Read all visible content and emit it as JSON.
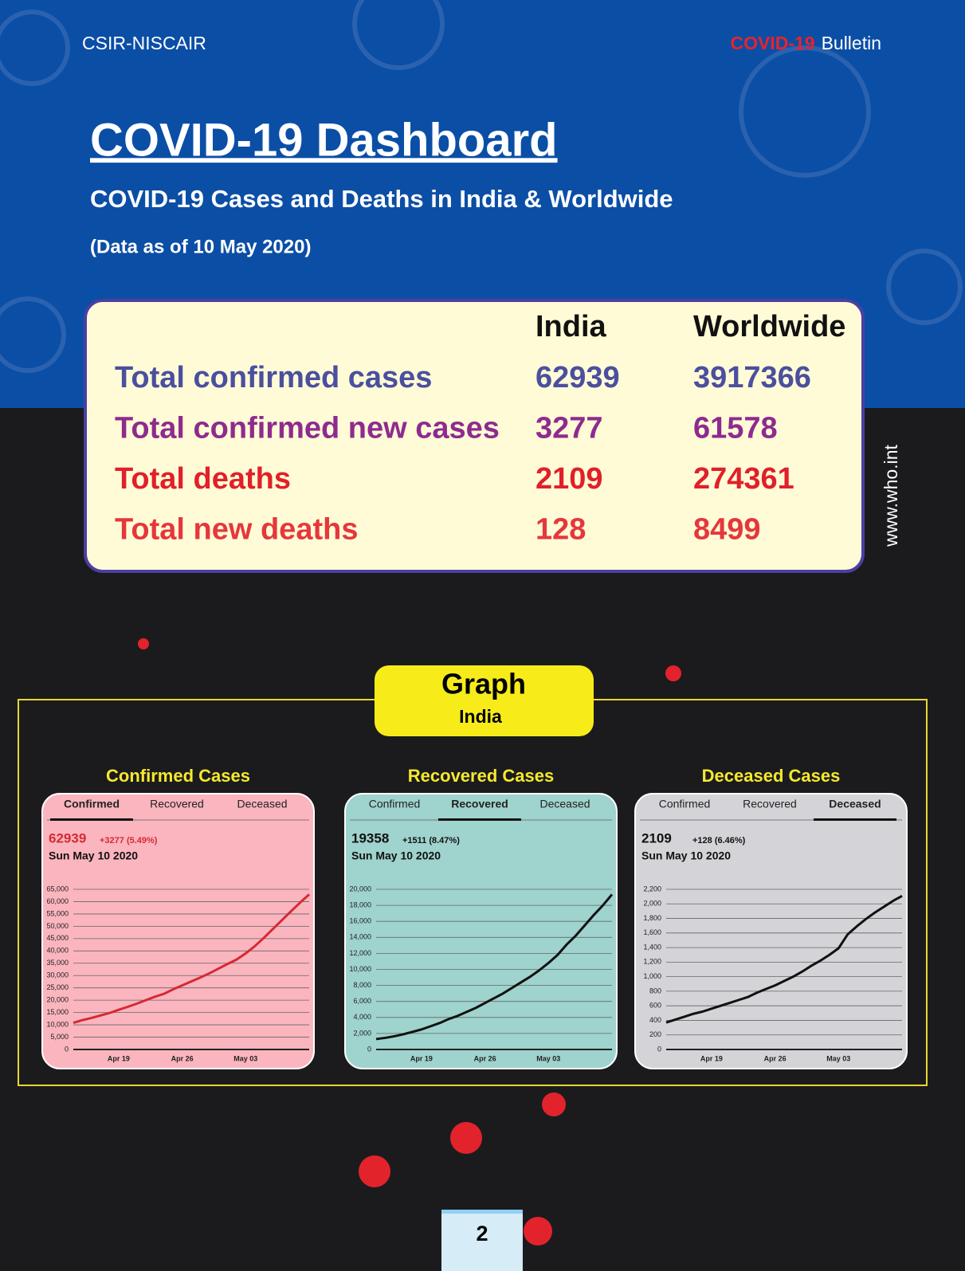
{
  "header": {
    "org": "CSIR-NISCAIR",
    "bulletin_highlight": "COVID-19",
    "bulletin": "Bulletin",
    "title": "COVID-19 Dashboard",
    "subtitle": "COVID-19 Cases and Deaths in India & Worldwide",
    "date_note": "(Data as of 10 May 2020)"
  },
  "table": {
    "columns": [
      "India",
      "Worldwide"
    ],
    "rows": [
      {
        "label": "Total confirmed cases",
        "values": [
          62939,
          3917366
        ],
        "color": "#4a4f9f"
      },
      {
        "label": "Total confirmed new cases",
        "values": [
          3277,
          61578
        ],
        "color": "#8e2b8e"
      },
      {
        "label": "Total deaths",
        "values": [
          2109,
          274361
        ],
        "color": "#e0202a"
      },
      {
        "label": "Total new deaths",
        "values": [
          128,
          8499
        ],
        "color": "#e5373c"
      }
    ]
  },
  "side_text": "www.who.int",
  "graph_label": "Graph",
  "graph_sublabel": "India",
  "chart_data": [
    {
      "type": "line",
      "title": "Confirmed Cases",
      "tabs": [
        "Confirmed",
        "Recovered",
        "Deceased"
      ],
      "active_tab": 0,
      "change": "+3277 (5.49%)",
      "date": "Sun May 10 2020",
      "color": "#d42a34",
      "background": "#fbb5bf",
      "categories": [
        null,
        null,
        null,
        null,
        null,
        "Apr 19",
        null,
        null,
        null,
        null,
        null,
        null,
        "Apr 26",
        null,
        null,
        null,
        null,
        null,
        null,
        "May 03",
        null,
        null,
        null,
        null,
        null,
        null,
        null
      ],
      "values": [
        10800,
        11900,
        12800,
        13800,
        14800,
        16100,
        17300,
        18600,
        20000,
        21400,
        22600,
        24400,
        26000,
        27600,
        29200,
        30900,
        32800,
        34700,
        36500,
        39000,
        41900,
        45300,
        48900,
        52500,
        56100,
        59600,
        62939
      ],
      "ylim": [
        0,
        65000
      ],
      "yticks": [
        0,
        {
          "value": 5000,
          "label": "5,000"
        },
        {
          "value": 10000,
          "label": "10,000"
        },
        {
          "value": 15000,
          "label": "15,000"
        },
        {
          "value": 20000,
          "label": "20,000"
        },
        {
          "value": 25000,
          "label": "25,000"
        },
        {
          "value": 30000,
          "label": "30,000"
        },
        {
          "value": 35000,
          "label": "35,000"
        },
        {
          "value": 40000,
          "label": "40,000"
        },
        {
          "value": 45000,
          "label": "45,000"
        },
        {
          "value": 50000,
          "label": "50,000"
        },
        {
          "value": 55000,
          "label": "55,000"
        },
        {
          "value": 60000,
          "label": "60,000"
        },
        {
          "value": 65000,
          "label": "65,000"
        }
      ],
      "grid": true
    },
    {
      "type": "line",
      "title": "Recovered Cases",
      "tabs": [
        "Confirmed",
        "Recovered",
        "Deceased"
      ],
      "active_tab": 1,
      "change": "+1511 (8.47%)",
      "date": "Sun May 10 2020",
      "color": "#111111",
      "background": "#9fd3cd",
      "categories": [
        null,
        null,
        null,
        null,
        null,
        "Apr 19",
        null,
        null,
        null,
        null,
        null,
        null,
        "Apr 26",
        null,
        null,
        null,
        null,
        null,
        null,
        "May 03",
        null,
        null,
        null,
        null,
        null,
        null,
        null
      ],
      "values": [
        1300,
        1450,
        1650,
        1900,
        2200,
        2500,
        2900,
        3300,
        3800,
        4200,
        4700,
        5200,
        5800,
        6400,
        7000,
        7700,
        8400,
        9100,
        9900,
        10800,
        11800,
        13100,
        14200,
        15500,
        16800,
        18000,
        19358
      ],
      "ylim": [
        0,
        20000
      ],
      "yticks": [
        0,
        {
          "value": 2000,
          "label": "2,000"
        },
        {
          "value": 4000,
          "label": "4,000"
        },
        {
          "value": 6000,
          "label": "6,000"
        },
        {
          "value": 8000,
          "label": "8,000"
        },
        {
          "value": 10000,
          "label": "10,000"
        },
        {
          "value": 12000,
          "label": "12,000"
        },
        {
          "value": 14000,
          "label": "14,000"
        },
        {
          "value": 16000,
          "label": "16,000"
        },
        {
          "value": 18000,
          "label": "18,000"
        },
        {
          "value": 20000,
          "label": "20,000"
        }
      ],
      "grid": true
    },
    {
      "type": "line",
      "title": "Deceased Cases",
      "tabs": [
        "Confirmed",
        "Recovered",
        "Deceased"
      ],
      "active_tab": 2,
      "change": "+128 (6.46%)",
      "date": "Sun May 10 2020",
      "color": "#111111",
      "background": "#d4d4d8",
      "categories": [
        null,
        null,
        null,
        null,
        null,
        "Apr 19",
        null,
        null,
        null,
        null,
        null,
        null,
        "Apr 26",
        null,
        null,
        null,
        null,
        null,
        null,
        "May 03",
        null,
        null,
        null,
        null,
        null,
        null,
        null
      ],
      "values": [
        370,
        410,
        450,
        490,
        520,
        560,
        600,
        640,
        680,
        720,
        780,
        830,
        880,
        940,
        1000,
        1070,
        1150,
        1220,
        1300,
        1390,
        1580,
        1690,
        1790,
        1880,
        1960,
        2040,
        2109
      ],
      "ylim": [
        0,
        2200
      ],
      "yticks": [
        0,
        200,
        400,
        600,
        800,
        {
          "value": 1000,
          "label": "1,000"
        },
        {
          "value": 1200,
          "label": "1,200"
        },
        {
          "value": 1400,
          "label": "1,400"
        },
        {
          "value": 1600,
          "label": "1,600"
        },
        {
          "value": 1800,
          "label": "1,800"
        },
        {
          "value": 2000,
          "label": "2,000"
        },
        {
          "value": 2200,
          "label": "2,200"
        }
      ],
      "grid": true
    }
  ],
  "page_number": "2"
}
